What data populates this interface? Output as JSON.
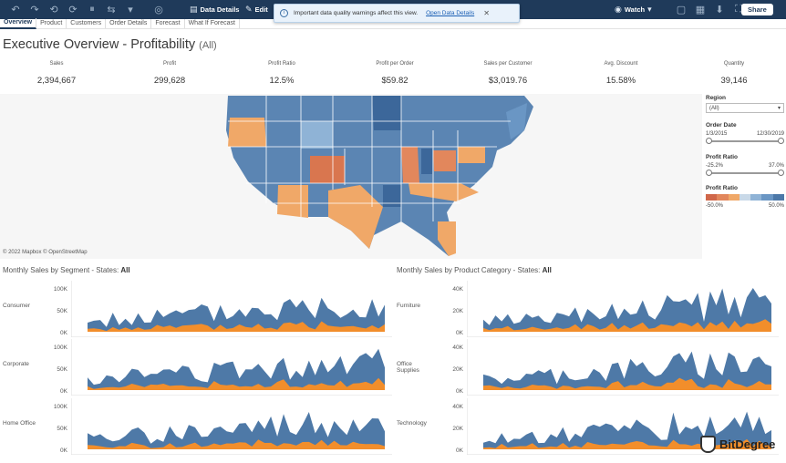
{
  "toolbar": {
    "data_details": "Data Details",
    "edit": "Edit",
    "watch": "Watch",
    "share": "Share"
  },
  "toast": {
    "message": "Important data quality warnings affect this view.",
    "link": "Open Data Details"
  },
  "tabs": [
    "Overview",
    "Product",
    "Customers",
    "Order Details",
    "Forecast",
    "What If Forecast"
  ],
  "title": {
    "main": "Executive Overview - Profitability",
    "sub": "(All)"
  },
  "kpis": [
    {
      "label": "Sales",
      "value": "2,394,667"
    },
    {
      "label": "Profit",
      "value": "299,628"
    },
    {
      "label": "Profit Ratio",
      "value": "12.5%"
    },
    {
      "label": "Profit per Order",
      "value": "$59.82"
    },
    {
      "label": "Sales per Customer",
      "value": "$3,019.76"
    },
    {
      "label": "Avg. Discount",
      "value": "15.58%"
    },
    {
      "label": "Quantity",
      "value": "39,146"
    }
  ],
  "map": {
    "credit": "© 2022 Mapbox © OpenStreetMap"
  },
  "filters": {
    "region_label": "Region",
    "region_value": "(All)",
    "order_date_label": "Order Date",
    "date_start": "1/3/2015",
    "date_end": "12/30/2019",
    "profit_ratio_label": "Profit Ratio",
    "pr_min": "-25.2%",
    "pr_max": "37.0%",
    "legend_label": "Profit Ratio",
    "legend_min": "-50.0%",
    "legend_max": "50.0%",
    "legend_colors": [
      "#d0674a",
      "#e2875c",
      "#f0a868",
      "#c9d9e8",
      "#8fb3d6",
      "#6a96c4",
      "#4c78a8"
    ]
  },
  "left_section": {
    "title": "Monthly Sales by Segment - States:",
    "filter": "All"
  },
  "right_section": {
    "title": "Monthly Sales by Product Category - States:",
    "filter": "All"
  },
  "colors": {
    "series_blue": "#4e79a7",
    "series_orange": "#f28e2b"
  },
  "chart_data": [
    {
      "type": "area",
      "title": "Monthly Sales by Segment - States: All",
      "rows": [
        {
          "label": "Consumer",
          "ticks": [
            "100K",
            "50K",
            "0K"
          ]
        },
        {
          "label": "Corporate",
          "ticks": [
            "100K",
            "50K",
            "0K"
          ]
        },
        {
          "label": "Home Office",
          "ticks": [
            "100K",
            "50K",
            "0K"
          ]
        }
      ],
      "series": [
        {
          "name": "Sales"
        },
        {
          "name": "Profit"
        }
      ]
    },
    {
      "type": "area",
      "title": "Monthly Sales by Product Category - States: All",
      "rows": [
        {
          "label": "Furniture",
          "ticks": [
            "40K",
            "20K",
            "0K"
          ]
        },
        {
          "label": "Office Supplies",
          "ticks": [
            "40K",
            "20K",
            "0K"
          ]
        },
        {
          "label": "Technology",
          "ticks": [
            "40K",
            "20K",
            "0K"
          ]
        }
      ],
      "series": [
        {
          "name": "Sales"
        },
        {
          "name": "Profit"
        }
      ]
    }
  ],
  "watermark": "BitDegree"
}
